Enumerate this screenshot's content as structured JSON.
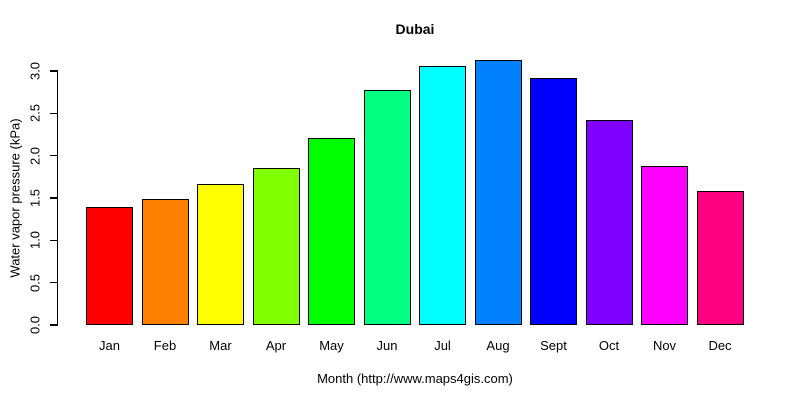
{
  "chart_data": {
    "type": "bar",
    "title": "Dubai",
    "xlabel": "Month (http://www.maps4gis.com)",
    "ylabel": "Water vapor pressure (kPa)",
    "categories": [
      "Jan",
      "Feb",
      "Mar",
      "Apr",
      "May",
      "Jun",
      "Jul",
      "Aug",
      "Sept",
      "Oct",
      "Nov",
      "Dec"
    ],
    "values": [
      1.39,
      1.49,
      1.66,
      1.86,
      2.21,
      2.77,
      3.06,
      3.13,
      2.92,
      2.42,
      1.88,
      1.58
    ],
    "bar_colors": [
      "#FF0000",
      "#FF8000",
      "#FFFF00",
      "#80FF00",
      "#00FF00",
      "#00FF80",
      "#00FFFF",
      "#0080FF",
      "#0000FF",
      "#8000FF",
      "#FF00FF",
      "#FF0080"
    ],
    "bar_border_color": "#000000",
    "ytick_labels": [
      "0.0",
      "0.5",
      "1.0",
      "1.5",
      "2.0",
      "2.5",
      "3.0"
    ],
    "ytick_values": [
      0,
      0.5,
      1,
      1.5,
      2,
      2.5,
      3
    ],
    "ylim": [
      0,
      3.2
    ],
    "axis_max_tick": 3.0,
    "grid": false,
    "legend": "none",
    "text_color": "#000000",
    "background_color": "#FFFFFF"
  }
}
